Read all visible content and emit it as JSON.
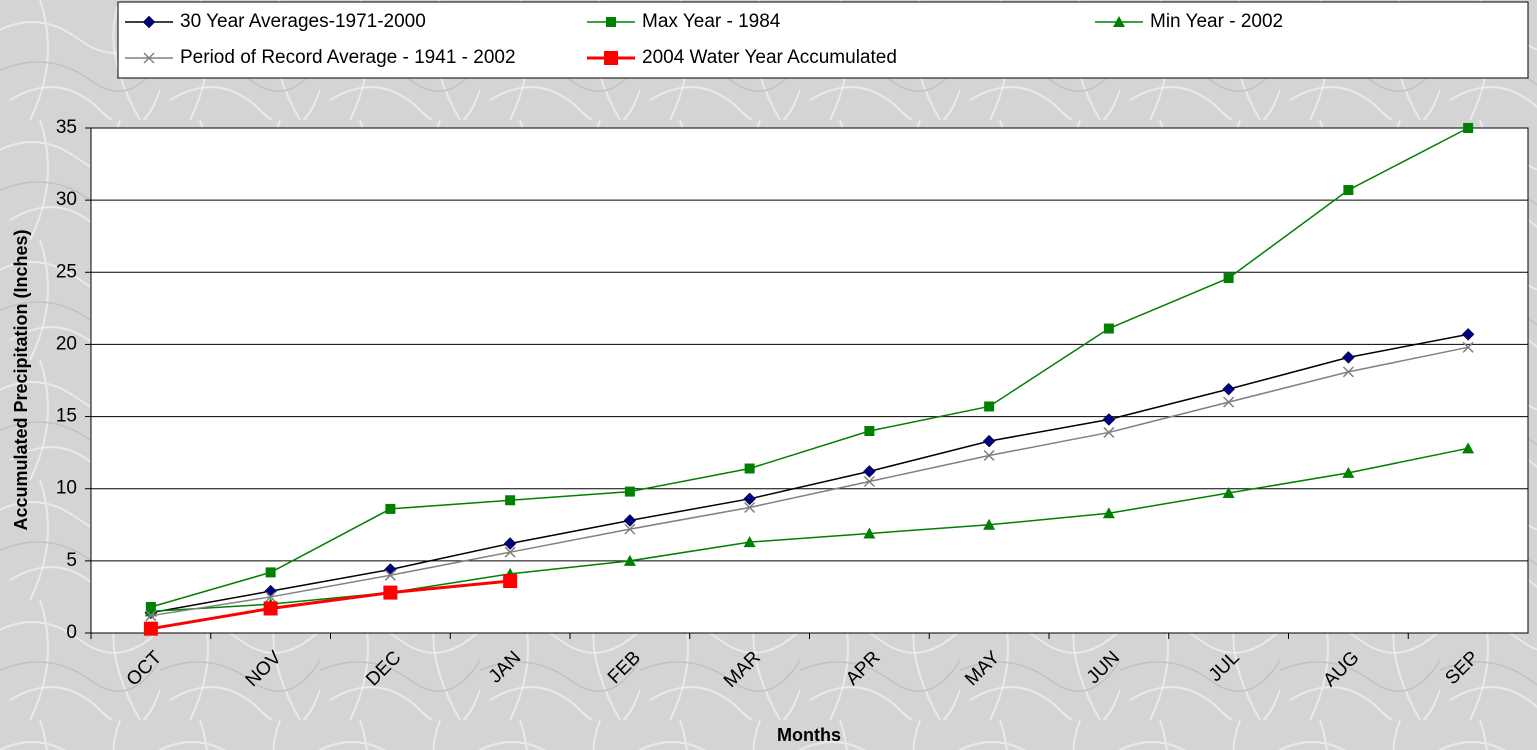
{
  "chart_data": {
    "type": "line",
    "categories": [
      "OCT",
      "NOV",
      "DEC",
      "JAN",
      "FEB",
      "MAR",
      "APR",
      "MAY",
      "JUN",
      "JUL",
      "AUG",
      "SEP"
    ],
    "series": [
      {
        "name": "30 Year Averages-1971-2000",
        "color": "#000080",
        "line_color": "#000000",
        "marker": "diamond",
        "values": [
          1.4,
          2.9,
          4.4,
          6.2,
          7.8,
          9.3,
          11.2,
          13.3,
          14.8,
          16.9,
          19.1,
          20.7
        ]
      },
      {
        "name": "Max Year - 1984",
        "color": "#008000",
        "line_color": "#008000",
        "marker": "square",
        "values": [
          1.8,
          4.2,
          8.6,
          9.2,
          9.8,
          11.4,
          14.0,
          15.7,
          21.1,
          24.6,
          30.7,
          35.0
        ]
      },
      {
        "name": "Min Year - 2002",
        "color": "#008000",
        "line_color": "#008000",
        "marker": "triangle",
        "values": [
          1.5,
          2.0,
          2.8,
          4.1,
          5.0,
          6.3,
          6.9,
          7.5,
          8.3,
          9.7,
          11.1,
          12.8
        ]
      },
      {
        "name": "Period of Record Average - 1941 - 2002",
        "color": "#808080",
        "line_color": "#808080",
        "marker": "x",
        "values": [
          1.2,
          2.5,
          4.0,
          5.6,
          7.2,
          8.7,
          10.5,
          12.3,
          13.9,
          16.0,
          18.1,
          19.8
        ]
      },
      {
        "name": "2004 Water Year Accumulated",
        "color": "#ff0000",
        "line_color": "#ff0000",
        "marker": "bigsquare",
        "values": [
          0.3,
          1.7,
          2.8,
          3.6,
          null,
          null,
          null,
          null,
          null,
          null,
          null,
          null
        ]
      }
    ],
    "xlabel": "Months",
    "ylabel": "Accumulated Precipitation (Inches)",
    "ylim": [
      0,
      35
    ],
    "yticks": [
      0,
      5,
      10,
      15,
      20,
      25,
      30,
      35
    ],
    "grid": true,
    "legend": "top"
  }
}
